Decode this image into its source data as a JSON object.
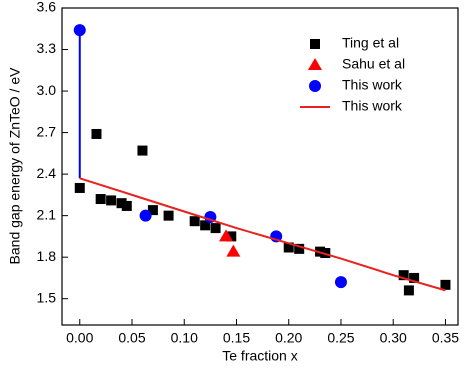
{
  "chart_data": {
    "type": "scatter",
    "xlabel": "Te fraction x",
    "ylabel": "Band gap energy  of ZnTeO  / eV",
    "xlim": [
      -0.017,
      0.362
    ],
    "ylim": [
      1.31,
      3.6
    ],
    "xticks": [
      {
        "value": 0,
        "label": "0.00"
      },
      {
        "value": 0.05,
        "label": "0.05"
      },
      {
        "value": 0.1,
        "label": "0.10"
      },
      {
        "value": 0.15,
        "label": "0.15"
      },
      {
        "value": 0.2,
        "label": "0.20"
      },
      {
        "value": 0.25,
        "label": "0.25"
      },
      {
        "value": 0.3,
        "label": "0.30"
      },
      {
        "value": 0.35,
        "label": "0.35"
      }
    ],
    "yticks": [
      1.5,
      1.8,
      2.1,
      2.4,
      2.7,
      {
        "value": 3,
        "label": "3.0"
      },
      3.3,
      3.6
    ],
    "legend": "upper right",
    "series": [
      {
        "name": "Ting et al",
        "color": "#000000",
        "marker": "square",
        "x": [
          0.0,
          0.016,
          0.02,
          0.03,
          0.04,
          0.045,
          0.06,
          0.07,
          0.085,
          0.11,
          0.12,
          0.13,
          0.145,
          0.2,
          0.21,
          0.23,
          0.235,
          0.31,
          0.315,
          0.32,
          0.35
        ],
        "values": [
          2.3,
          2.69,
          2.22,
          2.21,
          2.19,
          2.17,
          2.57,
          2.14,
          2.1,
          2.06,
          2.03,
          2.01,
          1.95,
          1.87,
          1.86,
          1.84,
          1.83,
          1.67,
          1.56,
          1.65,
          1.6
        ]
      },
      {
        "name": "Sahu et al",
        "color": "#ff0000",
        "marker": "triangle",
        "x": [
          0.14,
          0.147
        ],
        "values": [
          1.95,
          1.84
        ]
      },
      {
        "name": "This work",
        "color": "#0000ff",
        "marker": "circle",
        "x": [
          0.0,
          0.063,
          0.125,
          0.188,
          0.25
        ],
        "values": [
          3.44,
          2.1,
          2.09,
          1.95,
          1.62
        ]
      },
      {
        "name": "This work",
        "color": "#e8221e",
        "marker": "line",
        "x": [
          0.0,
          0.05,
          0.1,
          0.15,
          0.2,
          0.25,
          0.3,
          0.35
        ],
        "values": [
          2.37,
          2.25,
          2.13,
          2.01,
          1.9,
          1.79,
          1.67,
          1.56
        ]
      }
    ]
  }
}
